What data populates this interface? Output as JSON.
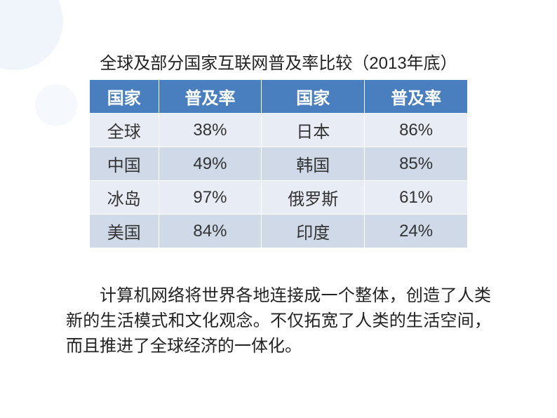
{
  "title": "全球及部分国家互联网普及率比较（2013年底）",
  "table": {
    "headers": [
      "国家",
      "普及率",
      "国家",
      "普及率"
    ],
    "rows": [
      [
        "全球",
        "38%",
        "日本",
        "86%"
      ],
      [
        "中国",
        "49%",
        "韩国",
        "85%"
      ],
      [
        "冰岛",
        "97%",
        "俄罗斯",
        "61%"
      ],
      [
        "美国",
        "84%",
        "印度",
        "24%"
      ]
    ],
    "header_bg": "#4a7fbf",
    "header_color": "#ffffff",
    "row_even_bg": "#e8edf5",
    "row_odd_bg": "#d0d9e8",
    "font_size": 24
  },
  "paragraph": "计算机网络将世界各地连接成一个整体，创造了人类新的生活模式和文化观念。不仅拓宽了人类的生活空间，而且推进了全球经济的一体化。",
  "colors": {
    "background": "#ffffff",
    "bg_circle": "#f0f5fb",
    "text": "#222222"
  }
}
